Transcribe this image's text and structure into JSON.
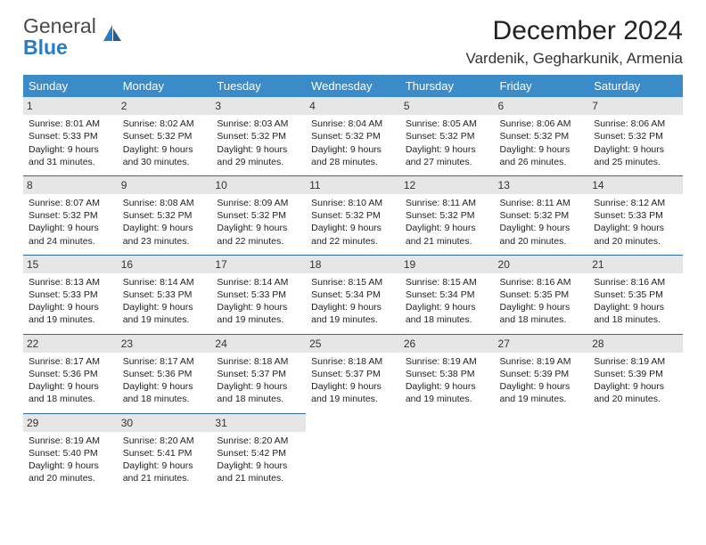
{
  "brand": {
    "top": "General",
    "bottom": "Blue"
  },
  "title": "December 2024",
  "location": "Vardenik, Gegharkunik, Armenia",
  "colors": {
    "header_bg": "#3b8bc9",
    "header_text": "#ffffff",
    "daynum_bg": "#e6e6e6",
    "row_border": "#2d6ca3",
    "logo_blue": "#2a7cc0",
    "logo_gray": "#4a4a4a"
  },
  "weekdays": [
    "Sunday",
    "Monday",
    "Tuesday",
    "Wednesday",
    "Thursday",
    "Friday",
    "Saturday"
  ],
  "days": [
    {
      "n": "1",
      "sr": "8:01 AM",
      "ss": "5:33 PM",
      "d1": "9 hours",
      "d2": "and 31 minutes."
    },
    {
      "n": "2",
      "sr": "8:02 AM",
      "ss": "5:32 PM",
      "d1": "9 hours",
      "d2": "and 30 minutes."
    },
    {
      "n": "3",
      "sr": "8:03 AM",
      "ss": "5:32 PM",
      "d1": "9 hours",
      "d2": "and 29 minutes."
    },
    {
      "n": "4",
      "sr": "8:04 AM",
      "ss": "5:32 PM",
      "d1": "9 hours",
      "d2": "and 28 minutes."
    },
    {
      "n": "5",
      "sr": "8:05 AM",
      "ss": "5:32 PM",
      "d1": "9 hours",
      "d2": "and 27 minutes."
    },
    {
      "n": "6",
      "sr": "8:06 AM",
      "ss": "5:32 PM",
      "d1": "9 hours",
      "d2": "and 26 minutes."
    },
    {
      "n": "7",
      "sr": "8:06 AM",
      "ss": "5:32 PM",
      "d1": "9 hours",
      "d2": "and 25 minutes."
    },
    {
      "n": "8",
      "sr": "8:07 AM",
      "ss": "5:32 PM",
      "d1": "9 hours",
      "d2": "and 24 minutes."
    },
    {
      "n": "9",
      "sr": "8:08 AM",
      "ss": "5:32 PM",
      "d1": "9 hours",
      "d2": "and 23 minutes."
    },
    {
      "n": "10",
      "sr": "8:09 AM",
      "ss": "5:32 PM",
      "d1": "9 hours",
      "d2": "and 22 minutes."
    },
    {
      "n": "11",
      "sr": "8:10 AM",
      "ss": "5:32 PM",
      "d1": "9 hours",
      "d2": "and 22 minutes."
    },
    {
      "n": "12",
      "sr": "8:11 AM",
      "ss": "5:32 PM",
      "d1": "9 hours",
      "d2": "and 21 minutes."
    },
    {
      "n": "13",
      "sr": "8:11 AM",
      "ss": "5:32 PM",
      "d1": "9 hours",
      "d2": "and 20 minutes."
    },
    {
      "n": "14",
      "sr": "8:12 AM",
      "ss": "5:33 PM",
      "d1": "9 hours",
      "d2": "and 20 minutes."
    },
    {
      "n": "15",
      "sr": "8:13 AM",
      "ss": "5:33 PM",
      "d1": "9 hours",
      "d2": "and 19 minutes."
    },
    {
      "n": "16",
      "sr": "8:14 AM",
      "ss": "5:33 PM",
      "d1": "9 hours",
      "d2": "and 19 minutes."
    },
    {
      "n": "17",
      "sr": "8:14 AM",
      "ss": "5:33 PM",
      "d1": "9 hours",
      "d2": "and 19 minutes."
    },
    {
      "n": "18",
      "sr": "8:15 AM",
      "ss": "5:34 PM",
      "d1": "9 hours",
      "d2": "and 19 minutes."
    },
    {
      "n": "19",
      "sr": "8:15 AM",
      "ss": "5:34 PM",
      "d1": "9 hours",
      "d2": "and 18 minutes."
    },
    {
      "n": "20",
      "sr": "8:16 AM",
      "ss": "5:35 PM",
      "d1": "9 hours",
      "d2": "and 18 minutes."
    },
    {
      "n": "21",
      "sr": "8:16 AM",
      "ss": "5:35 PM",
      "d1": "9 hours",
      "d2": "and 18 minutes."
    },
    {
      "n": "22",
      "sr": "8:17 AM",
      "ss": "5:36 PM",
      "d1": "9 hours",
      "d2": "and 18 minutes."
    },
    {
      "n": "23",
      "sr": "8:17 AM",
      "ss": "5:36 PM",
      "d1": "9 hours",
      "d2": "and 18 minutes."
    },
    {
      "n": "24",
      "sr": "8:18 AM",
      "ss": "5:37 PM",
      "d1": "9 hours",
      "d2": "and 18 minutes."
    },
    {
      "n": "25",
      "sr": "8:18 AM",
      "ss": "5:37 PM",
      "d1": "9 hours",
      "d2": "and 19 minutes."
    },
    {
      "n": "26",
      "sr": "8:19 AM",
      "ss": "5:38 PM",
      "d1": "9 hours",
      "d2": "and 19 minutes."
    },
    {
      "n": "27",
      "sr": "8:19 AM",
      "ss": "5:39 PM",
      "d1": "9 hours",
      "d2": "and 19 minutes."
    },
    {
      "n": "28",
      "sr": "8:19 AM",
      "ss": "5:39 PM",
      "d1": "9 hours",
      "d2": "and 20 minutes."
    },
    {
      "n": "29",
      "sr": "8:19 AM",
      "ss": "5:40 PM",
      "d1": "9 hours",
      "d2": "and 20 minutes."
    },
    {
      "n": "30",
      "sr": "8:20 AM",
      "ss": "5:41 PM",
      "d1": "9 hours",
      "d2": "and 21 minutes."
    },
    {
      "n": "31",
      "sr": "8:20 AM",
      "ss": "5:42 PM",
      "d1": "9 hours",
      "d2": "and 21 minutes."
    }
  ],
  "labels": {
    "sunrise": "Sunrise:",
    "sunset": "Sunset:",
    "daylight": "Daylight:"
  }
}
